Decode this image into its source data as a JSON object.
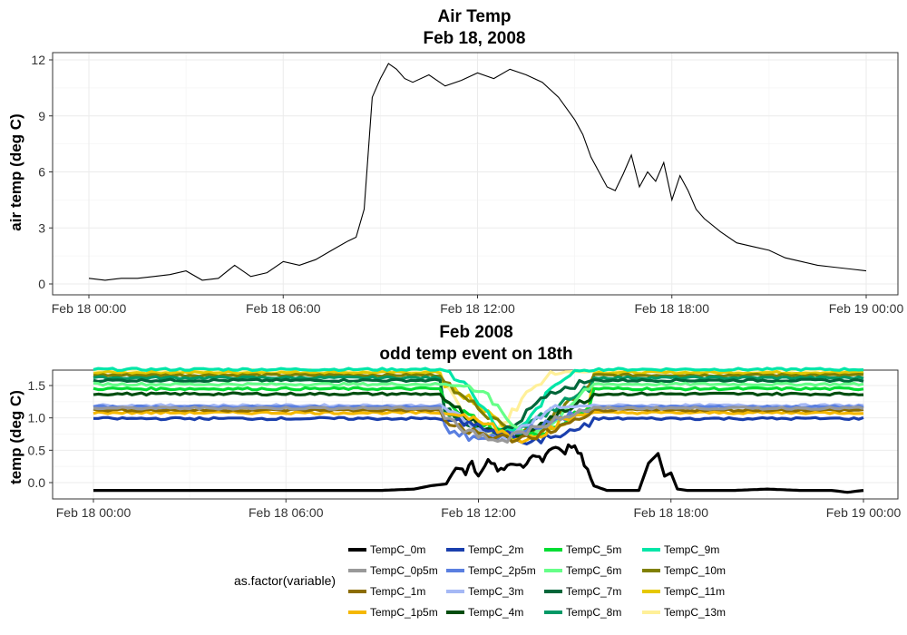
{
  "chart_data": [
    {
      "type": "line",
      "title": "Air Temp",
      "subtitle": "Feb 18, 2008",
      "xlabel": "",
      "ylabel": "air temp (deg C)",
      "x_ticks": [
        "Feb 18 00:00",
        "Feb 18 06:00",
        "Feb 18 12:00",
        "Feb 18 18:00",
        "Feb 19 00:00"
      ],
      "xlim_hours": [
        0,
        24
      ],
      "ylim": [
        0,
        12
      ],
      "y_ticks": [
        0,
        3,
        6,
        9,
        12
      ],
      "grid": true,
      "series": [
        {
          "color": "#000000",
          "x_hours": [
            0,
            0.5,
            1,
            1.5,
            2,
            2.5,
            3,
            3.5,
            4,
            4.5,
            5,
            5.5,
            6,
            6.5,
            7,
            7.5,
            8,
            8.25,
            8.5,
            8.75,
            9,
            9.25,
            9.5,
            9.75,
            10,
            10.5,
            11,
            11.5,
            12,
            12.5,
            13,
            13.5,
            14,
            14.5,
            15,
            15.25,
            15.5,
            15.75,
            16,
            16.25,
            16.5,
            16.75,
            17,
            17.25,
            17.5,
            17.75,
            18,
            18.25,
            18.5,
            18.75,
            19,
            19.5,
            20,
            20.5,
            21,
            21.5,
            22,
            22.5,
            23,
            23.5,
            24
          ],
          "values": [
            0.3,
            0.2,
            0.3,
            0.3,
            0.4,
            0.5,
            0.7,
            0.2,
            0.3,
            1.0,
            0.4,
            0.6,
            1.2,
            1.0,
            1.3,
            1.8,
            2.3,
            2.5,
            4.0,
            10.0,
            11.0,
            11.8,
            11.5,
            11.0,
            10.8,
            11.2,
            10.6,
            10.9,
            11.3,
            11.0,
            11.5,
            11.2,
            10.8,
            10.0,
            8.8,
            8.0,
            6.8,
            6.0,
            5.2,
            5.0,
            5.9,
            6.9,
            5.2,
            6.0,
            5.5,
            6.5,
            4.5,
            5.8,
            5.0,
            4.0,
            3.5,
            2.8,
            2.2,
            2.0,
            1.8,
            1.4,
            1.2,
            1.0,
            0.9,
            0.8,
            0.7
          ]
        }
      ]
    },
    {
      "type": "line",
      "title": "Feb 2008",
      "subtitle": "odd temp event on 18th",
      "xlabel": "",
      "ylabel": "temp (deg C)",
      "x_ticks": [
        "Feb 18 00:00",
        "Feb 18 06:00",
        "Feb 18 12:00",
        "Feb 18 18:00",
        "Feb 19 00:00"
      ],
      "xlim_hours": [
        0,
        24
      ],
      "ylim": [
        -0.2,
        1.8
      ],
      "y_ticks": [
        "0.0",
        "0.5",
        "1.0",
        "1.5"
      ],
      "y_tick_values": [
        0,
        0.5,
        1.0,
        1.5
      ],
      "grid": true,
      "legend_title": "as.factor(variable)",
      "legend_position": "bottom",
      "series": [
        {
          "name": "TempC_0m",
          "color": "#000000",
          "base": -0.12
        },
        {
          "name": "TempC_0p5m",
          "color": "#999999",
          "base": 1.15
        },
        {
          "name": "TempC_1m",
          "color": "#8c6d00",
          "base": 1.12
        },
        {
          "name": "TempC_1p5m",
          "color": "#f5b800",
          "base": 1.08
        },
        {
          "name": "TempC_2m",
          "color": "#1a3fad",
          "base": 0.99
        },
        {
          "name": "TempC_2p5m",
          "color": "#5a7fe0",
          "base": 1.17
        },
        {
          "name": "TempC_3m",
          "color": "#a5b8f5",
          "base": 1.19
        },
        {
          "name": "TempC_4m",
          "color": "#004d10",
          "base": 1.37
        },
        {
          "name": "TempC_5m",
          "color": "#00dd33",
          "base": 1.45
        },
        {
          "name": "TempC_6m",
          "color": "#66ff88",
          "base": 1.52
        },
        {
          "name": "TempC_7m",
          "color": "#00663a",
          "base": 1.58
        },
        {
          "name": "TempC_8m",
          "color": "#009966",
          "base": 1.62
        },
        {
          "name": "TempC_9m",
          "color": "#00e6a8",
          "base": 1.75
        },
        {
          "name": "TempC_10m",
          "color": "#808000",
          "base": 1.66
        },
        {
          "name": "TempC_11m",
          "color": "#e6c800",
          "base": 1.7
        },
        {
          "name": "TempC_13m",
          "color": "#fff099",
          "base": 1.73
        }
      ],
      "event_window_hours": [
        10.8,
        15.6
      ],
      "sensor0_x_hours": [
        0,
        6,
        9,
        10,
        10.5,
        11,
        11.4,
        11.6,
        11.8,
        12,
        12.3,
        12.6,
        13,
        13.4,
        13.7,
        14,
        14.3,
        14.6,
        15,
        15.3,
        15.6,
        16,
        16.5,
        17,
        17.3,
        17.6,
        17.8,
        18,
        18.2,
        18.5,
        19,
        20,
        21,
        22,
        23,
        23.5,
        24
      ],
      "sensor0_values": [
        -0.12,
        -0.12,
        -0.12,
        -0.1,
        -0.05,
        -0.02,
        0.25,
        0.1,
        0.35,
        0.05,
        0.3,
        0.2,
        0.3,
        0.2,
        0.45,
        0.35,
        0.55,
        0.45,
        0.62,
        0.3,
        -0.05,
        -0.12,
        -0.12,
        -0.12,
        0.3,
        0.45,
        0.1,
        0.15,
        -0.1,
        -0.12,
        -0.12,
        -0.12,
        -0.1,
        -0.12,
        -0.12,
        -0.15,
        -0.12
      ]
    }
  ]
}
